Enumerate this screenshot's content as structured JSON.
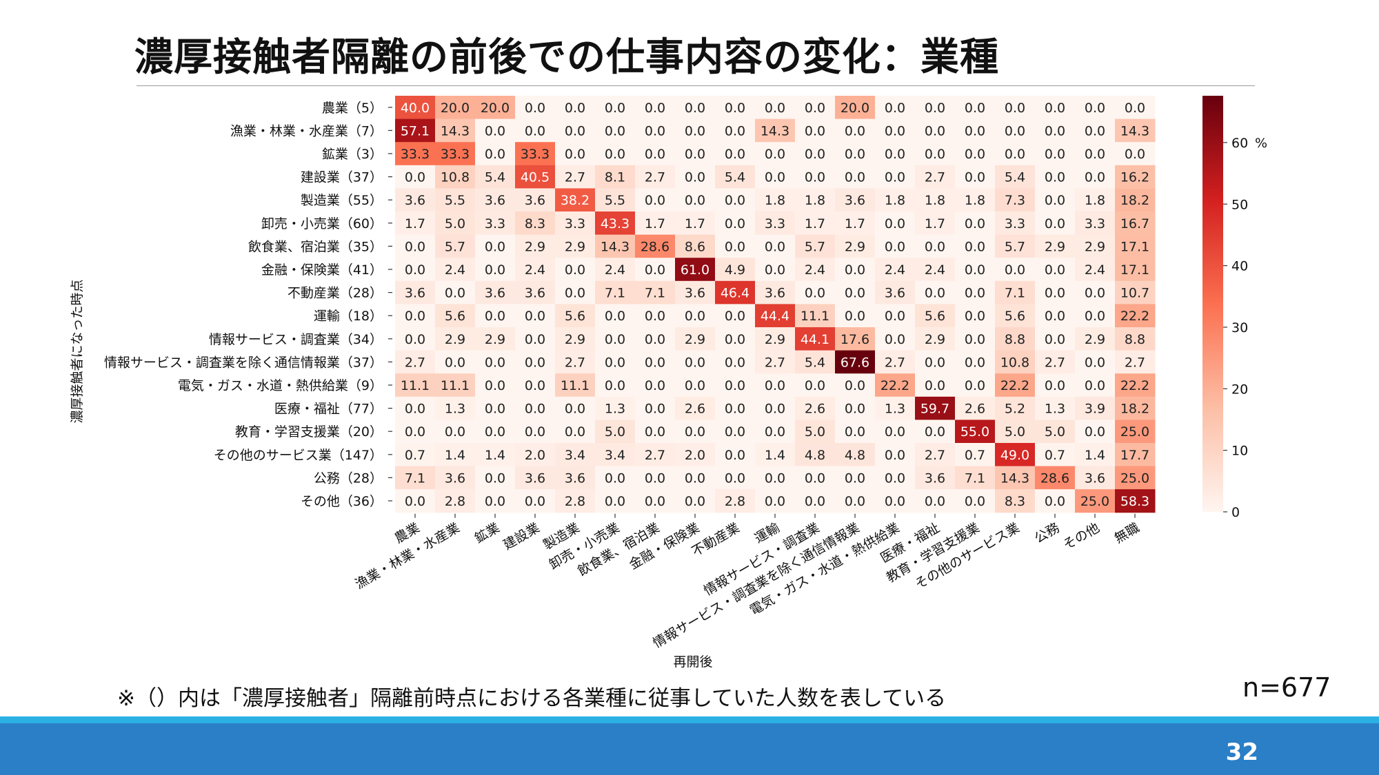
{
  "slide": {
    "title": "濃厚接触者隔離の前後での仕事内容の変化：業種",
    "footnote": "※（）内は「濃厚接触者」隔離前時点における各業種に従事していた人数を表している",
    "sample_size": "n=677",
    "page_number": "32"
  },
  "colors": {
    "footer_bar": "#2a7fc7",
    "footer_line": "#2bb0e4",
    "colormap": [
      "#fff5f0",
      "#fcbea5",
      "#fb7050",
      "#d32020",
      "#67000d"
    ]
  },
  "chart_data": {
    "type": "heatmap",
    "ylabel": "濃厚接触者になった時点",
    "xlabel": "再開後",
    "rows": [
      "農業（5）",
      "漁業・林業・水産業（7）",
      "鉱業（3）",
      "建設業（37）",
      "製造業（55）",
      "卸売・小売業（60）",
      "飲食業、宿泊業（35）",
      "金融・保険業（41）",
      "不動産業（28）",
      "運輸（18）",
      "情報サービス・調査業（34）",
      "情報サービス・調査業を除く通信情報業（37）",
      "電気・ガス・水道・熱供給業（9）",
      "医療・福祉（77）",
      "教育・学習支援業（20）",
      "その他のサービス業（147）",
      "公務（28）",
      "その他（36）"
    ],
    "columns": [
      "農業",
      "漁業・林業・水産業",
      "鉱業",
      "建設業",
      "製造業",
      "卸売・小売業",
      "飲食業、宿泊業",
      "金融・保険業",
      "不動産業",
      "運輸",
      "情報サービス・調査業",
      "情報サービス・調査業を除く通信情報業",
      "電気・ガス・水道・熱供給業",
      "医療・福祉",
      "教育・学習支援業",
      "その他のサービス業",
      "公務",
      "その他",
      "無職"
    ],
    "values": [
      [
        40.0,
        20.0,
        20.0,
        0.0,
        0.0,
        0.0,
        0.0,
        0.0,
        0.0,
        0.0,
        0.0,
        20.0,
        0.0,
        0.0,
        0.0,
        0.0,
        0.0,
        0.0,
        0.0
      ],
      [
        57.1,
        14.3,
        0.0,
        0.0,
        0.0,
        0.0,
        0.0,
        0.0,
        0.0,
        14.3,
        0.0,
        0.0,
        0.0,
        0.0,
        0.0,
        0.0,
        0.0,
        0.0,
        14.3
      ],
      [
        33.3,
        33.3,
        0.0,
        33.3,
        0.0,
        0.0,
        0.0,
        0.0,
        0.0,
        0.0,
        0.0,
        0.0,
        0.0,
        0.0,
        0.0,
        0.0,
        0.0,
        0.0,
        0.0
      ],
      [
        0.0,
        10.8,
        5.4,
        40.5,
        2.7,
        8.1,
        2.7,
        0.0,
        5.4,
        0.0,
        0.0,
        0.0,
        0.0,
        2.7,
        0.0,
        5.4,
        0.0,
        0.0,
        16.2
      ],
      [
        3.6,
        5.5,
        3.6,
        3.6,
        38.2,
        5.5,
        0.0,
        0.0,
        0.0,
        1.8,
        1.8,
        3.6,
        1.8,
        1.8,
        1.8,
        7.3,
        0.0,
        1.8,
        18.2
      ],
      [
        1.7,
        5.0,
        3.3,
        8.3,
        3.3,
        43.3,
        1.7,
        1.7,
        0.0,
        3.3,
        1.7,
        1.7,
        0.0,
        1.7,
        0.0,
        3.3,
        0.0,
        3.3,
        16.7
      ],
      [
        0.0,
        5.7,
        0.0,
        2.9,
        2.9,
        14.3,
        28.6,
        8.6,
        0.0,
        0.0,
        5.7,
        2.9,
        0.0,
        0.0,
        0.0,
        5.7,
        2.9,
        2.9,
        17.1
      ],
      [
        0.0,
        2.4,
        0.0,
        2.4,
        0.0,
        2.4,
        0.0,
        61.0,
        4.9,
        0.0,
        2.4,
        0.0,
        2.4,
        2.4,
        0.0,
        0.0,
        0.0,
        2.4,
        17.1
      ],
      [
        3.6,
        0.0,
        3.6,
        3.6,
        0.0,
        7.1,
        7.1,
        3.6,
        46.4,
        3.6,
        0.0,
        0.0,
        3.6,
        0.0,
        0.0,
        7.1,
        0.0,
        0.0,
        10.7
      ],
      [
        0.0,
        5.6,
        0.0,
        0.0,
        5.6,
        0.0,
        0.0,
        0.0,
        0.0,
        44.4,
        11.1,
        0.0,
        0.0,
        5.6,
        0.0,
        5.6,
        0.0,
        0.0,
        22.2
      ],
      [
        0.0,
        2.9,
        2.9,
        0.0,
        2.9,
        0.0,
        0.0,
        2.9,
        0.0,
        2.9,
        44.1,
        17.6,
        0.0,
        2.9,
        0.0,
        8.8,
        0.0,
        2.9,
        8.8
      ],
      [
        2.7,
        0.0,
        0.0,
        0.0,
        2.7,
        0.0,
        0.0,
        0.0,
        0.0,
        2.7,
        5.4,
        67.6,
        2.7,
        0.0,
        0.0,
        10.8,
        2.7,
        0.0,
        2.7
      ],
      [
        11.1,
        11.1,
        0.0,
        0.0,
        11.1,
        0.0,
        0.0,
        0.0,
        0.0,
        0.0,
        0.0,
        0.0,
        22.2,
        0.0,
        0.0,
        22.2,
        0.0,
        0.0,
        22.2
      ],
      [
        0.0,
        1.3,
        0.0,
        0.0,
        0.0,
        1.3,
        0.0,
        2.6,
        0.0,
        0.0,
        2.6,
        0.0,
        1.3,
        59.7,
        2.6,
        5.2,
        1.3,
        3.9,
        18.2
      ],
      [
        0.0,
        0.0,
        0.0,
        0.0,
        0.0,
        5.0,
        0.0,
        0.0,
        0.0,
        0.0,
        5.0,
        0.0,
        0.0,
        0.0,
        55.0,
        5.0,
        5.0,
        0.0,
        25.0
      ],
      [
        0.7,
        1.4,
        1.4,
        2.0,
        3.4,
        3.4,
        2.7,
        2.0,
        0.0,
        1.4,
        4.8,
        4.8,
        0.0,
        2.7,
        0.7,
        49.0,
        0.7,
        1.4,
        17.7
      ],
      [
        7.1,
        3.6,
        0.0,
        3.6,
        3.6,
        0.0,
        0.0,
        0.0,
        0.0,
        0.0,
        0.0,
        0.0,
        0.0,
        3.6,
        7.1,
        14.3,
        28.6,
        3.6,
        25.0
      ],
      [
        0.0,
        2.8,
        0.0,
        0.0,
        2.8,
        0.0,
        0.0,
        0.0,
        2.8,
        0.0,
        0.0,
        0.0,
        0.0,
        0.0,
        0.0,
        8.3,
        0.0,
        25.0,
        58.3
      ]
    ],
    "colorbar": {
      "range": [
        0,
        67.6
      ],
      "ticks": [
        0,
        10,
        20,
        30,
        40,
        50,
        60
      ],
      "unit": "%"
    }
  }
}
